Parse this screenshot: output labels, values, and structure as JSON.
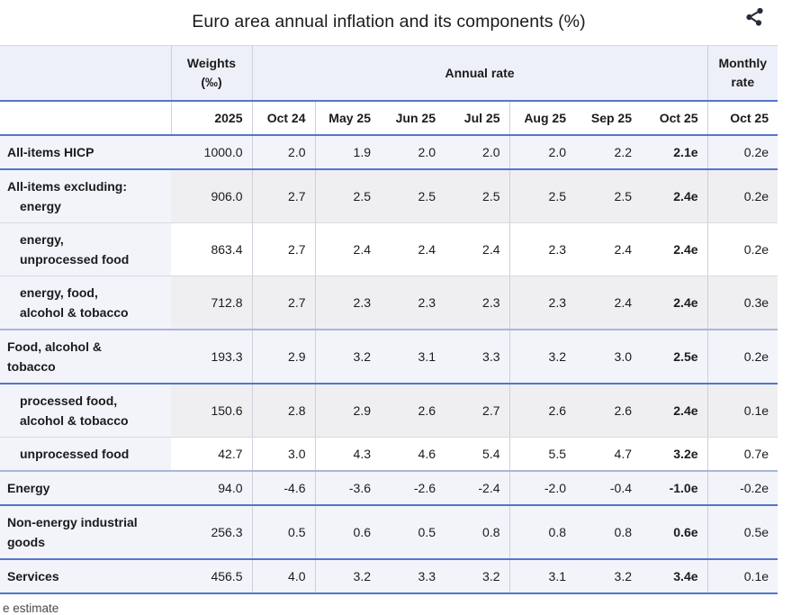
{
  "title": "Euro area annual inflation and its components (%)",
  "footnote": "e estimate",
  "icons": {
    "share": "share-icon"
  },
  "colors": {
    "separator_blue": "#5575cc",
    "separator_lightblue": "#a9b6da",
    "separator_gray": "#d9dade",
    "header_bg": "#edf0f8",
    "row_main_bg": "#f2f4fa",
    "row_gray_bg": "#efeff2",
    "row_white_bg": "#ffffff",
    "column_line": "#cdd0d9",
    "text": "#1b1b1b",
    "footnote_text": "#4a4a4a",
    "icon": "#252b39"
  },
  "table": {
    "header": {
      "weights_lines": [
        "Weights",
        "(‰)"
      ],
      "annual_rate": "Annual rate",
      "monthly_rate_lines": [
        "Monthly",
        "rate"
      ],
      "year": "2025",
      "months": [
        "Oct 24",
        "May 25",
        "Jun 25",
        "Jul 25",
        "Aug 25",
        "Sep 25",
        "Oct 25"
      ],
      "monthly_month": "Oct 25"
    }
  },
  "chart_data": {
    "type": "table",
    "title": "Euro area annual inflation and its components (%)",
    "column_groups": [
      "Weights (‰)",
      "Annual rate",
      "Monthly rate"
    ],
    "columns": [
      "2025",
      "Oct 24",
      "May 25",
      "Jun 25",
      "Jul 25",
      "Aug 25",
      "Sep 25",
      "Oct 25",
      "Oct 25"
    ],
    "estimate_note": "e estimate",
    "rows": [
      {
        "label": "All-items HICP",
        "label_lines": [
          {
            "t": "All-items HICP",
            "ind": false
          }
        ],
        "style": "main",
        "separator": "blue",
        "weight": "1000.0",
        "annual": [
          "2.0",
          "1.9",
          "2.0",
          "2.0",
          "2.0",
          "2.2",
          "2.1e"
        ],
        "monthly": "0.2e"
      },
      {
        "label": "All-items excluding: energy",
        "label_lines": [
          {
            "t": "All-items excluding:",
            "ind": false
          },
          {
            "t": "energy",
            "ind": true
          }
        ],
        "style": "gray",
        "separator": "gray",
        "weight": "906.0",
        "annual": [
          "2.7",
          "2.5",
          "2.5",
          "2.5",
          "2.5",
          "2.5",
          "2.4e"
        ],
        "monthly": "0.2e"
      },
      {
        "label": "energy, unprocessed food",
        "label_lines": [
          {
            "t": "energy,",
            "ind": true
          },
          {
            "t": "unprocessed food",
            "ind": true
          }
        ],
        "style": "white",
        "separator": "gray",
        "weight": "863.4",
        "annual": [
          "2.7",
          "2.4",
          "2.4",
          "2.4",
          "2.3",
          "2.4",
          "2.4e"
        ],
        "monthly": "0.2e"
      },
      {
        "label": "energy, food, alcohol & tobacco",
        "label_lines": [
          {
            "t": "energy, food,",
            "ind": true
          },
          {
            "t": "alcohol & tobacco",
            "ind": true
          }
        ],
        "style": "gray",
        "separator": "lightblue",
        "weight": "712.8",
        "annual": [
          "2.7",
          "2.3",
          "2.3",
          "2.3",
          "2.3",
          "2.4",
          "2.4e"
        ],
        "monthly": "0.3e"
      },
      {
        "label": "Food, alcohol & tobacco",
        "label_lines": [
          {
            "t": "Food, alcohol &",
            "ind": false
          },
          {
            "t": "tobacco",
            "ind": false
          }
        ],
        "style": "main",
        "separator": "blue",
        "weight": "193.3",
        "annual": [
          "2.9",
          "3.2",
          "3.1",
          "3.3",
          "3.2",
          "3.0",
          "2.5e"
        ],
        "monthly": "0.2e"
      },
      {
        "label": "processed food, alcohol & tobacco",
        "label_lines": [
          {
            "t": "processed food,",
            "ind": true
          },
          {
            "t": "alcohol & tobacco",
            "ind": true
          }
        ],
        "style": "gray",
        "separator": "gray",
        "weight": "150.6",
        "annual": [
          "2.8",
          "2.9",
          "2.6",
          "2.7",
          "2.6",
          "2.6",
          "2.4e"
        ],
        "monthly": "0.1e"
      },
      {
        "label": "unprocessed food",
        "label_lines": [
          {
            "t": "unprocessed food",
            "ind": true
          }
        ],
        "style": "white",
        "separator": "lightblue",
        "weight": "42.7",
        "annual": [
          "3.0",
          "4.3",
          "4.6",
          "5.4",
          "5.5",
          "4.7",
          "3.2e"
        ],
        "monthly": "0.7e"
      },
      {
        "label": "Energy",
        "label_lines": [
          {
            "t": "Energy",
            "ind": false
          }
        ],
        "style": "main",
        "separator": "blue",
        "weight": "94.0",
        "annual": [
          "-4.6",
          "-3.6",
          "-2.6",
          "-2.4",
          "-2.0",
          "-0.4",
          "-1.0e"
        ],
        "monthly": "-0.2e"
      },
      {
        "label": "Non-energy industrial goods",
        "label_lines": [
          {
            "t": "Non-energy industrial",
            "ind": false
          },
          {
            "t": "goods",
            "ind": false
          }
        ],
        "style": "main",
        "separator": "blue",
        "weight": "256.3",
        "annual": [
          "0.5",
          "0.6",
          "0.5",
          "0.8",
          "0.8",
          "0.8",
          "0.6e"
        ],
        "monthly": "0.5e"
      },
      {
        "label": "Services",
        "label_lines": [
          {
            "t": "Services",
            "ind": false
          }
        ],
        "style": "main",
        "separator": "blue",
        "weight": "456.5",
        "annual": [
          "4.0",
          "3.2",
          "3.3",
          "3.2",
          "3.1",
          "3.2",
          "3.4e"
        ],
        "monthly": "0.1e"
      }
    ]
  }
}
